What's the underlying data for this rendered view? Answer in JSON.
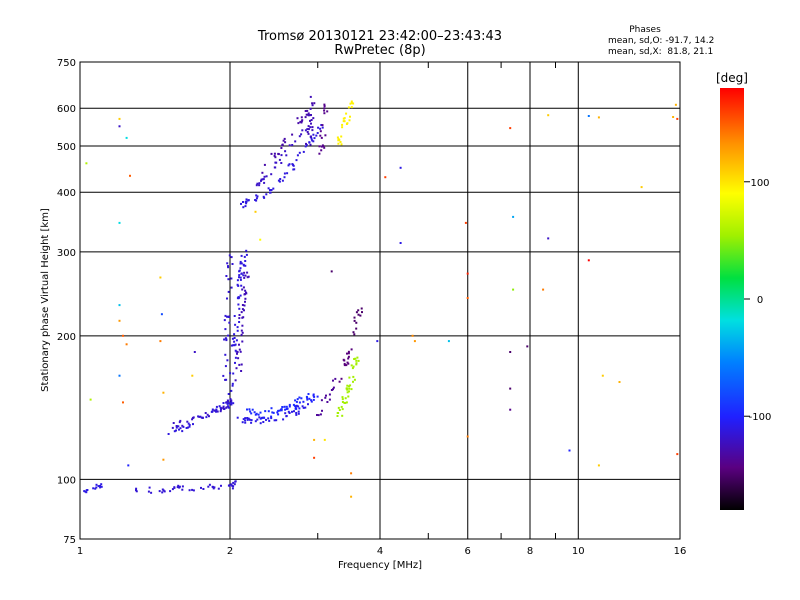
{
  "chart_data": {
    "type": "scatter",
    "title": "Tromsø 20130121 23:42:00–23:43:43",
    "subtitle": "RwPretec (8p)",
    "xlabel": "Frequency [MHz]",
    "ylabel": "Stationary phase Virtual Height [km]",
    "x_scale": "log",
    "y_scale": "log",
    "xlim": [
      1,
      16
    ],
    "ylim": [
      75,
      750
    ],
    "x_ticks": [
      1,
      2,
      4,
      6,
      8,
      10,
      16
    ],
    "x_minor_ticks": [
      3,
      5,
      7,
      9
    ],
    "y_ticks": [
      75,
      100,
      200,
      300,
      400,
      500,
      600,
      750
    ],
    "grid": true,
    "stats": {
      "heading": "Phases",
      "line_o": "mean, sd,O: -91.7, 14.2",
      "line_x": "mean, sd,X:  81.8, 21.1"
    },
    "colorbar": {
      "label": "[deg]",
      "range": [
        -180,
        180
      ],
      "ticks": [
        100,
        0,
        -100
      ],
      "colormap": "rainbow"
    },
    "traces": [
      {
        "x": [
          1.0,
          1.04,
          1.08,
          1.1
        ],
        "y": [
          96,
          95,
          96,
          97
        ],
        "phase": -110,
        "n": 14
      },
      {
        "x": [
          1.3,
          1.45,
          1.6,
          1.8,
          2.0,
          2.08
        ],
        "y": [
          95,
          95,
          96,
          96,
          97,
          98
        ],
        "phase": -115,
        "n": 45
      },
      {
        "x": [
          1.5,
          1.6,
          1.75,
          1.9,
          2.0
        ],
        "y": [
          125,
          128,
          135,
          140,
          145
        ],
        "phase": -112,
        "n": 40
      },
      {
        "x": [
          1.55,
          1.7,
          1.85,
          1.95,
          2.0
        ],
        "y": [
          130,
          133,
          138,
          142,
          148
        ],
        "phase": -120,
        "n": 30
      },
      {
        "x": [
          1.95,
          1.97,
          1.99,
          2.0
        ],
        "y": [
          160,
          200,
          250,
          300
        ],
        "phase": -115,
        "n": 30
      },
      {
        "x": [
          2.0,
          2.03,
          2.06,
          2.1,
          2.14
        ],
        "y": [
          140,
          180,
          220,
          260,
          300
        ],
        "phase": -112,
        "n": 60
      },
      {
        "x": [
          2.08,
          2.1,
          2.13,
          2.17
        ],
        "y": [
          160,
          200,
          240,
          280
        ],
        "phase": -125,
        "n": 40
      },
      {
        "x": [
          2.1,
          2.3,
          2.5,
          2.7,
          2.85
        ],
        "y": [
          133,
          133,
          134,
          138,
          145
        ],
        "phase": -110,
        "n": 45
      },
      {
        "x": [
          2.15,
          2.3,
          2.5,
          2.7,
          2.9
        ],
        "y": [
          140,
          138,
          140,
          145,
          150
        ],
        "phase": -95,
        "n": 35
      },
      {
        "x": [
          2.25,
          2.45,
          2.65,
          2.85,
          3.0
        ],
        "y": [
          135,
          136,
          140,
          145,
          150
        ],
        "phase": -100,
        "n": 25
      },
      {
        "x": [
          2.1,
          2.3,
          2.5,
          2.7,
          2.9,
          3.1
        ],
        "y": [
          375,
          390,
          420,
          460,
          510,
          560
        ],
        "phase": -112,
        "n": 60
      },
      {
        "x": [
          2.2,
          2.45,
          2.7,
          2.9
        ],
        "y": [
          400,
          450,
          510,
          560
        ],
        "phase": -120,
        "n": 30
      },
      {
        "x": [
          2.3,
          2.5,
          2.75,
          2.95
        ],
        "y": [
          440,
          490,
          560,
          620
        ],
        "phase": -130,
        "n": 30
      },
      {
        "x": [
          2.88,
          2.9,
          2.92
        ],
        "y": [
          500,
          560,
          640
        ],
        "phase": -125,
        "n": 20
      },
      {
        "x": [
          3.05,
          3.08,
          3.12
        ],
        "y": [
          480,
          540,
          630
        ],
        "phase": -140,
        "n": 18
      },
      {
        "x": [
          3.3,
          3.35,
          3.42,
          3.5
        ],
        "y": [
          500,
          530,
          560,
          620
        ],
        "phase": 95,
        "n": 25
      },
      {
        "x": [
          3.0,
          3.1,
          3.2,
          3.3
        ],
        "y": [
          135,
          145,
          155,
          165
        ],
        "phase": -135,
        "n": 15
      },
      {
        "x": [
          3.3,
          3.4,
          3.5,
          3.6
        ],
        "y": [
          135,
          148,
          160,
          180
        ],
        "phase": 55,
        "n": 40
      },
      {
        "x": [
          3.35,
          3.4,
          3.5
        ],
        "y": [
          160,
          175,
          190
        ],
        "phase": -145,
        "n": 15
      },
      {
        "x": [
          3.55,
          3.6,
          3.65
        ],
        "y": [
          200,
          215,
          230
        ],
        "phase": -150,
        "n": 12
      }
    ],
    "points": [
      {
        "x": 1.03,
        "y": 460,
        "phase": 60
      },
      {
        "x": 1.2,
        "y": 570,
        "phase": 110
      },
      {
        "x": 1.2,
        "y": 550,
        "phase": -120
      },
      {
        "x": 1.24,
        "y": 520,
        "phase": -20
      },
      {
        "x": 1.2,
        "y": 345,
        "phase": -20
      },
      {
        "x": 1.2,
        "y": 232,
        "phase": -30
      },
      {
        "x": 1.2,
        "y": 215,
        "phase": 130
      },
      {
        "x": 1.22,
        "y": 200,
        "phase": 150
      },
      {
        "x": 1.24,
        "y": 192,
        "phase": 140
      },
      {
        "x": 1.2,
        "y": 165,
        "phase": -60
      },
      {
        "x": 1.22,
        "y": 145,
        "phase": 150
      },
      {
        "x": 1.26,
        "y": 433,
        "phase": 150
      },
      {
        "x": 1.25,
        "y": 107,
        "phase": -100
      },
      {
        "x": 1.05,
        "y": 147,
        "phase": 60
      },
      {
        "x": 1.45,
        "y": 265,
        "phase": 110
      },
      {
        "x": 1.46,
        "y": 222,
        "phase": -80
      },
      {
        "x": 1.45,
        "y": 195,
        "phase": 140
      },
      {
        "x": 1.47,
        "y": 152,
        "phase": 120
      },
      {
        "x": 1.47,
        "y": 110,
        "phase": 130
      },
      {
        "x": 1.7,
        "y": 185,
        "phase": -120
      },
      {
        "x": 1.68,
        "y": 165,
        "phase": 110
      },
      {
        "x": 2.25,
        "y": 364,
        "phase": 110
      },
      {
        "x": 2.3,
        "y": 318,
        "phase": 90
      },
      {
        "x": 2.95,
        "y": 111,
        "phase": 160
      },
      {
        "x": 2.95,
        "y": 121,
        "phase": 120
      },
      {
        "x": 3.1,
        "y": 121,
        "phase": 100
      },
      {
        "x": 3.2,
        "y": 273,
        "phase": -150
      },
      {
        "x": 3.5,
        "y": 92,
        "phase": 120
      },
      {
        "x": 3.5,
        "y": 103,
        "phase": 140
      },
      {
        "x": 3.95,
        "y": 195,
        "phase": -110
      },
      {
        "x": 4.1,
        "y": 430,
        "phase": 160
      },
      {
        "x": 4.4,
        "y": 450,
        "phase": -110
      },
      {
        "x": 4.4,
        "y": 313,
        "phase": -110
      },
      {
        "x": 4.65,
        "y": 200,
        "phase": 135
      },
      {
        "x": 4.7,
        "y": 195,
        "phase": 130
      },
      {
        "x": 5.5,
        "y": 195,
        "phase": -30
      },
      {
        "x": 5.95,
        "y": 345,
        "phase": 160
      },
      {
        "x": 6.0,
        "y": 270,
        "phase": 170
      },
      {
        "x": 6.0,
        "y": 240,
        "phase": 150
      },
      {
        "x": 6.0,
        "y": 123,
        "phase": 140
      },
      {
        "x": 7.3,
        "y": 545,
        "phase": 160
      },
      {
        "x": 7.4,
        "y": 355,
        "phase": -40
      },
      {
        "x": 7.4,
        "y": 250,
        "phase": 50
      },
      {
        "x": 7.3,
        "y": 185,
        "phase": -150
      },
      {
        "x": 7.3,
        "y": 155,
        "phase": -150
      },
      {
        "x": 7.3,
        "y": 140,
        "phase": -140
      },
      {
        "x": 7.9,
        "y": 190,
        "phase": -150
      },
      {
        "x": 8.5,
        "y": 250,
        "phase": 140
      },
      {
        "x": 8.7,
        "y": 580,
        "phase": 110
      },
      {
        "x": 8.7,
        "y": 320,
        "phase": -120
      },
      {
        "x": 9.6,
        "y": 115,
        "phase": -100
      },
      {
        "x": 10.5,
        "y": 578,
        "phase": -60
      },
      {
        "x": 10.5,
        "y": 288,
        "phase": 180
      },
      {
        "x": 11.0,
        "y": 574,
        "phase": 120
      },
      {
        "x": 11.2,
        "y": 165,
        "phase": 110
      },
      {
        "x": 11.0,
        "y": 107,
        "phase": 110
      },
      {
        "x": 12.1,
        "y": 160,
        "phase": 120
      },
      {
        "x": 13.4,
        "y": 410,
        "phase": 110
      },
      {
        "x": 15.7,
        "y": 610,
        "phase": 120
      },
      {
        "x": 15.8,
        "y": 570,
        "phase": 160
      },
      {
        "x": 15.8,
        "y": 113,
        "phase": 160
      },
      {
        "x": 15.5,
        "y": 575,
        "phase": 120
      }
    ]
  }
}
